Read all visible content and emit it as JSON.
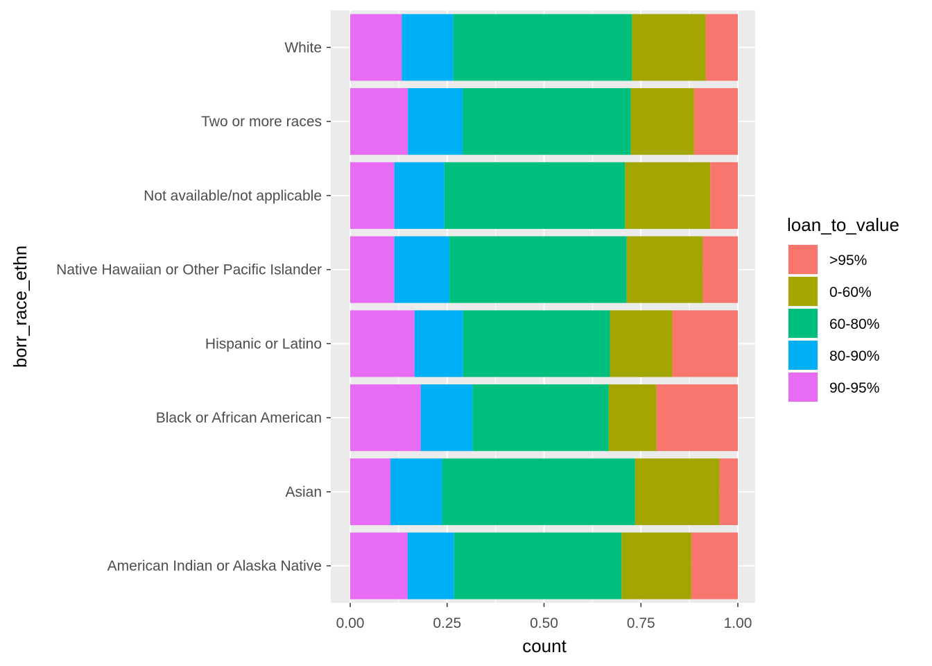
{
  "chart_data": {
    "type": "bar",
    "orientation": "horizontal",
    "stacked": "fill",
    "xlabel": "count",
    "ylabel": "borr_race_ethn",
    "xlim": [
      0,
      1
    ],
    "x_ticks": [
      "0.00",
      "0.25",
      "0.50",
      "0.75",
      "1.00"
    ],
    "categories": [
      "American Indian or Alaska Native",
      "Asian",
      "Black or African American",
      "Hispanic or Latino",
      "Native Hawaiian or Other Pacific Islander",
      "Not available/not applicable",
      "Two or more races",
      "White"
    ],
    "legend": {
      "title": "loan_to_value",
      "position": "right",
      "entries": [
        ">95%",
        "0-60%",
        "60-80%",
        "80-90%",
        "90-95%"
      ]
    },
    "series": [
      {
        "name": "90-95%",
        "color": "#E76BF3",
        "values": [
          0.148,
          0.104,
          0.182,
          0.166,
          0.114,
          0.114,
          0.149,
          0.133
        ]
      },
      {
        "name": "80-90%",
        "color": "#00B0F6",
        "values": [
          0.12,
          0.133,
          0.134,
          0.125,
          0.142,
          0.129,
          0.141,
          0.133
        ]
      },
      {
        "name": "60-80%",
        "color": "#00BF7D",
        "values": [
          0.432,
          0.498,
          0.351,
          0.379,
          0.457,
          0.466,
          0.434,
          0.461
        ]
      },
      {
        "name": "0-60%",
        "color": "#A3A500",
        "values": [
          0.18,
          0.218,
          0.123,
          0.161,
          0.197,
          0.22,
          0.163,
          0.19
        ]
      },
      {
        "name": ">95%",
        "color": "#F8766D",
        "values": [
          0.12,
          0.047,
          0.21,
          0.169,
          0.09,
          0.071,
          0.113,
          0.083
        ]
      }
    ],
    "grid": true,
    "panel_background": "#EBEBEB"
  }
}
